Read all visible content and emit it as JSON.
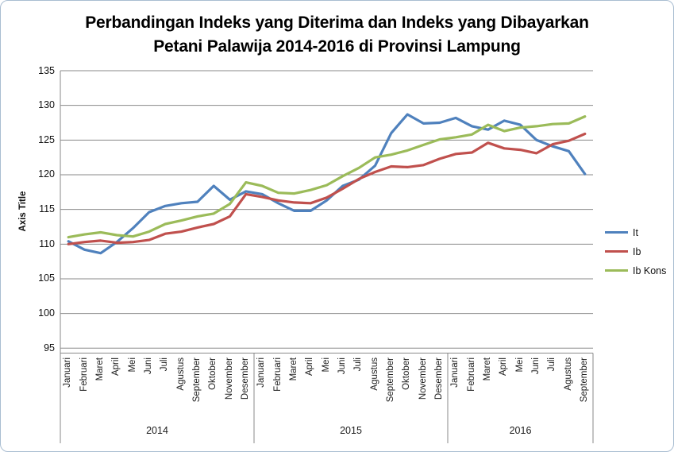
{
  "title": {
    "line1": "Perbandingan Indeks yang Diterima dan Indeks yang Dibayarkan",
    "line2": "Petani Palawija 2014-2016 di Provinsi Lampung"
  },
  "colors": {
    "gridline": "#8a8a8a",
    "axis_line": "#8a8a8a",
    "frame_border": "#a9bdd1",
    "it_blue": "#4F81BD",
    "ib_red": "#C0504D",
    "ibkons_green": "#9BBB59"
  },
  "chart_data": {
    "type": "line",
    "title": "Perbandingan Indeks yang Diterima dan Indeks yang Dibayarkan Petani Palawija 2014-2016 di Provinsi Lampung",
    "y_axis_title": "Axis Title",
    "ylim": [
      95,
      135
    ],
    "ytick_step": 5,
    "ytick_labels": [
      "95",
      "100",
      "105",
      "110",
      "115",
      "120",
      "125",
      "130",
      "135"
    ],
    "grid": "horizontal",
    "legend_position": "right",
    "x_groups": [
      {
        "year": "2014",
        "months": [
          "Januari",
          "Februari",
          "Maret",
          "April",
          "Mei",
          "Juni",
          "Juli",
          "Agustus",
          "September",
          "Oktober",
          "November",
          "Desember"
        ]
      },
      {
        "year": "2015",
        "months": [
          "Januari",
          "Februari",
          "Maret",
          "April",
          "Mei",
          "Juni",
          "Juli",
          "Agustus",
          "September",
          "Oktober",
          "November",
          "Desember"
        ]
      },
      {
        "year": "2016",
        "months": [
          "Januari",
          "Februari",
          "Maret",
          "April",
          "Mei",
          "Juni",
          "Juli",
          "Agustus",
          "September"
        ]
      }
    ],
    "series": [
      {
        "name": "It",
        "color": "#4F81BD",
        "values": [
          110.4,
          109.2,
          108.7,
          110.3,
          112.3,
          114.6,
          115.5,
          115.9,
          116.1,
          118.4,
          116.4,
          117.6,
          117.2,
          115.9,
          114.8,
          114.8,
          116.3,
          118.4,
          119.3,
          121.3,
          126.0,
          128.7,
          127.4,
          127.5,
          128.2,
          127.0,
          126.5,
          127.8,
          127.2,
          125.0,
          124.1,
          123.4,
          120.1
        ]
      },
      {
        "name": "Ib",
        "color": "#C0504D",
        "values": [
          110.0,
          110.3,
          110.5,
          110.2,
          110.3,
          110.6,
          111.5,
          111.8,
          112.4,
          112.9,
          114.0,
          117.2,
          116.8,
          116.3,
          116.0,
          115.9,
          116.7,
          118.0,
          119.4,
          120.4,
          121.2,
          121.1,
          121.4,
          122.3,
          123.0,
          123.2,
          124.6,
          123.8,
          123.6,
          123.1,
          124.4,
          124.9,
          125.9
        ]
      },
      {
        "name": "Ib Kons",
        "color": "#9BBB59",
        "values": [
          111.0,
          111.4,
          111.7,
          111.3,
          111.1,
          111.8,
          112.9,
          113.4,
          114.0,
          114.4,
          115.8,
          118.9,
          118.4,
          117.4,
          117.3,
          117.8,
          118.5,
          119.8,
          121.0,
          122.5,
          122.9,
          123.5,
          124.3,
          125.1,
          125.4,
          125.8,
          127.2,
          126.3,
          126.8,
          127.0,
          127.3,
          127.4,
          128.4
        ]
      }
    ]
  }
}
